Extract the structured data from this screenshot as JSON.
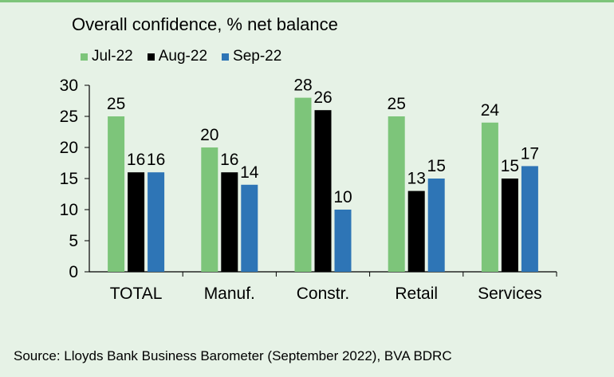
{
  "chart_data": {
    "type": "bar",
    "title": "Overall confidence, % net balance",
    "categories": [
      "TOTAL",
      "Manuf.",
      "Constr.",
      "Retail",
      "Services"
    ],
    "series": [
      {
        "name": "Jul-22",
        "color": "#7dc57a",
        "values": [
          25,
          20,
          28,
          25,
          24
        ]
      },
      {
        "name": "Aug-22",
        "color": "#000000",
        "values": [
          16,
          16,
          26,
          13,
          15
        ]
      },
      {
        "name": "Sep-22",
        "color": "#2e75b6",
        "values": [
          16,
          14,
          10,
          15,
          17
        ]
      }
    ],
    "y_ticks": [
      "0",
      "5",
      "10",
      "15",
      "20",
      "25",
      "30"
    ],
    "ylim": [
      0,
      30
    ],
    "xlabel": "",
    "ylabel": "",
    "grid": false,
    "legend_position": "top-left",
    "data_labels": true
  },
  "source": "Source: Lloyds Bank Business Barometer (September 2022), BVA BDRC"
}
